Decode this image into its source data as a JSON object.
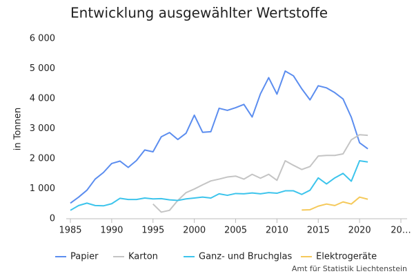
{
  "chart_data": {
    "type": "line",
    "title": "Entwicklung ausgewählter Wertstoffe",
    "y_label": "in Tonnen",
    "source": "Amt für Statistik Liechtenstein",
    "x": [
      1985,
      1986,
      1987,
      1988,
      1989,
      1990,
      1991,
      1992,
      1993,
      1994,
      1995,
      1996,
      1997,
      1998,
      1999,
      2000,
      2001,
      2002,
      2003,
      2004,
      2005,
      2006,
      2007,
      2008,
      2009,
      2010,
      2011,
      2012,
      2013,
      2014,
      2015,
      2016,
      2017,
      2018,
      2019,
      2020,
      2021
    ],
    "series": [
      {
        "name": "Papier",
        "color": "#5b8def",
        "values": [
          520,
          720,
          950,
          1320,
          1540,
          1840,
          1920,
          1710,
          1940,
          2290,
          2230,
          2730,
          2870,
          2640,
          2850,
          3450,
          2880,
          2900,
          3680,
          3610,
          3700,
          3810,
          3390,
          4160,
          4700,
          4150,
          4920,
          4760,
          4330,
          3960,
          4430,
          4360,
          4200,
          3990,
          3380,
          2530,
          2330
        ]
      },
      {
        "name": "Karton",
        "color": "#c4c4c4",
        "values": [
          null,
          null,
          null,
          null,
          null,
          null,
          null,
          null,
          null,
          null,
          490,
          220,
          280,
          610,
          870,
          990,
          1130,
          1260,
          1320,
          1390,
          1420,
          1320,
          1480,
          1350,
          1480,
          1280,
          1930,
          1780,
          1640,
          1740,
          2090,
          2110,
          2110,
          2160,
          2630,
          2800,
          2780
        ]
      },
      {
        "name": "Ganz- und Bruchglas",
        "color": "#3cc4ec",
        "values": [
          280,
          440,
          520,
          440,
          430,
          500,
          680,
          640,
          640,
          690,
          660,
          670,
          630,
          610,
          660,
          690,
          720,
          690,
          830,
          780,
          840,
          830,
          860,
          830,
          870,
          850,
          930,
          930,
          810,
          950,
          1360,
          1160,
          1360,
          1510,
          1250,
          1930,
          1890
        ]
      },
      {
        "name": "Elektrogeräte",
        "color": "#f5c95a",
        "values": [
          null,
          null,
          null,
          null,
          null,
          null,
          null,
          null,
          null,
          null,
          null,
          null,
          null,
          null,
          null,
          null,
          null,
          null,
          null,
          null,
          null,
          null,
          null,
          null,
          null,
          null,
          null,
          null,
          290,
          300,
          420,
          490,
          440,
          560,
          490,
          720,
          650
        ]
      }
    ],
    "xlim": [
      1985,
      2025
    ],
    "xticks": [
      1985,
      1990,
      1995,
      2000,
      2005,
      2010,
      2015,
      2020,
      {
        "value": 2025,
        "label": "20…"
      }
    ],
    "ylim": [
      0,
      6000
    ],
    "yticks": [
      0,
      {
        "value": 1000,
        "label": "1 000"
      },
      {
        "value": 2000,
        "label": "2 000"
      },
      {
        "value": 3000,
        "label": "3 000"
      },
      {
        "value": 4000,
        "label": "4 000"
      },
      {
        "value": 5000,
        "label": "5 000"
      },
      {
        "value": 6000,
        "label": "6 000"
      }
    ],
    "grid": false
  }
}
